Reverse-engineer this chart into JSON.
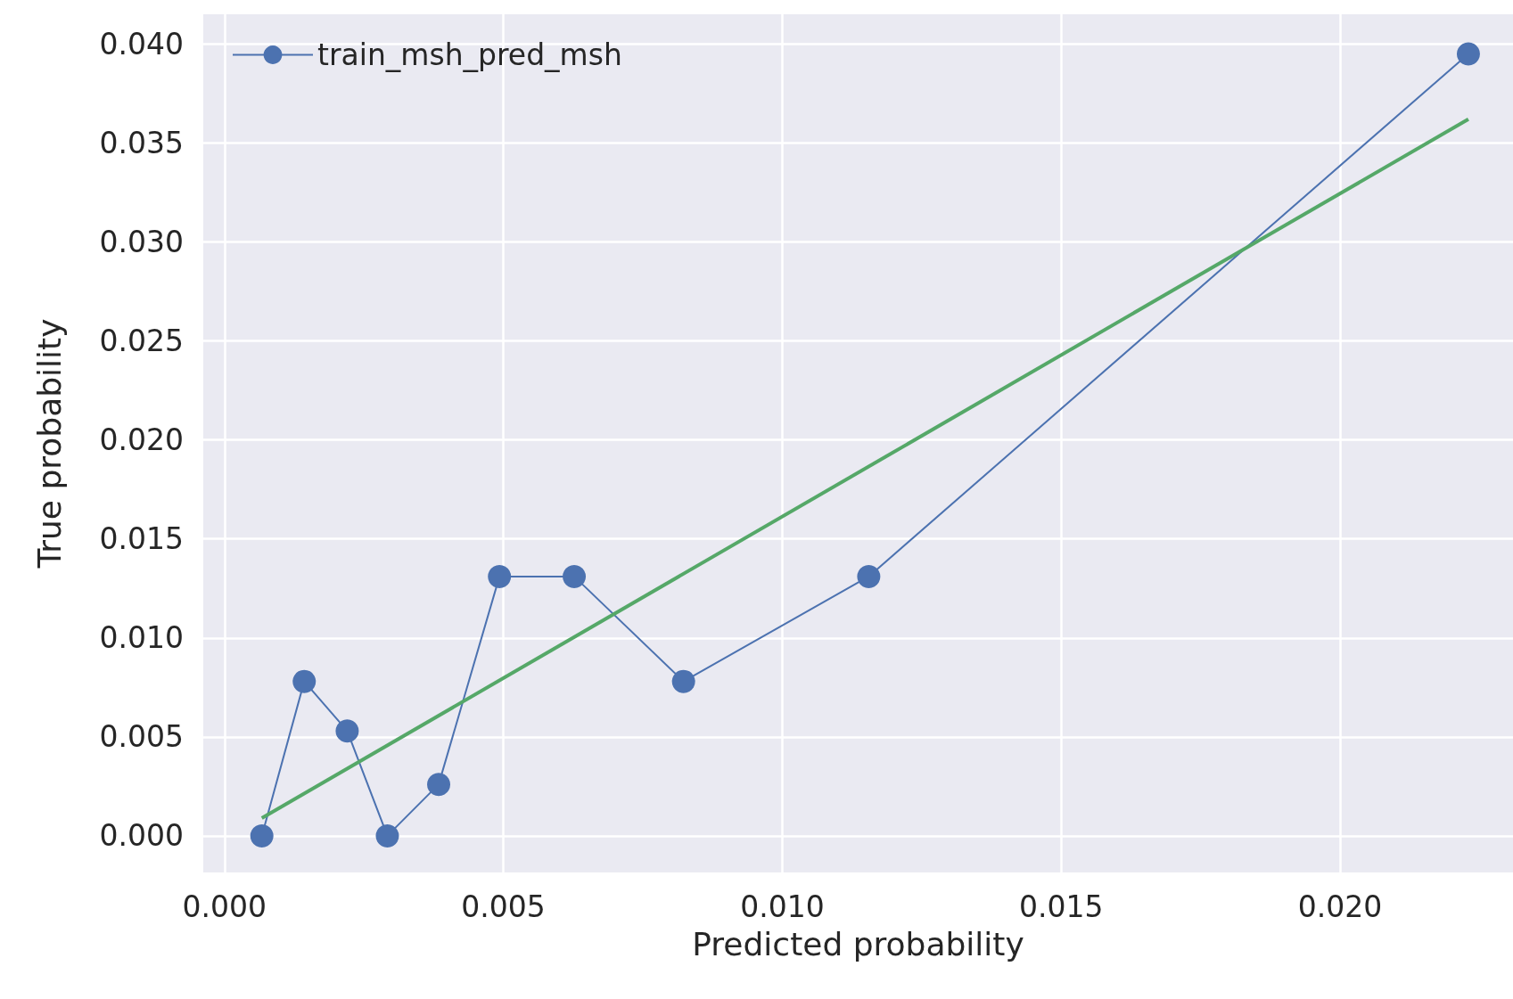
{
  "chart_data": {
    "type": "line",
    "xlabel": "Predicted probability",
    "ylabel": "True probability",
    "xlim": [
      -0.00038,
      0.0231
    ],
    "ylim": [
      -0.00185,
      0.0415
    ],
    "xticks": [
      {
        "value": 0,
        "label": "0.000"
      },
      {
        "value": 0.005,
        "label": "0.005"
      },
      {
        "value": 0.01,
        "label": "0.010"
      },
      {
        "value": 0.015,
        "label": "0.015"
      },
      {
        "value": 0.02,
        "label": "0.020"
      }
    ],
    "yticks": [
      {
        "value": 0,
        "label": "0.000"
      },
      {
        "value": 0.005,
        "label": "0.005"
      },
      {
        "value": 0.01,
        "label": "0.010"
      },
      {
        "value": 0.015,
        "label": "0.015"
      },
      {
        "value": 0.02,
        "label": "0.020"
      },
      {
        "value": 0.025,
        "label": "0.025"
      },
      {
        "value": 0.03,
        "label": "0.030"
      },
      {
        "value": 0.035,
        "label": "0.035"
      },
      {
        "value": 0.04,
        "label": "0.040"
      }
    ],
    "series": [
      {
        "name": "train_msh_pred_msh",
        "color": "#4c72b0",
        "marker": "circle",
        "x": [
          0.00067,
          0.00143,
          0.0022,
          0.00292,
          0.00384,
          0.00493,
          0.00627,
          0.00823,
          0.01155,
          0.0223
        ],
        "values": [
          0,
          0.0078,
          0.0053,
          0,
          0.0026,
          0.0131,
          0.0131,
          0.0078,
          0.0131,
          0.0395
        ]
      },
      {
        "type": "line",
        "color": "#55a868",
        "marker": "none",
        "x": [
          0.00067,
          0.0223
        ],
        "values": [
          0.0009,
          0.0362
        ]
      }
    ],
    "grid": true,
    "legend": "top left",
    "line_style": "solid"
  }
}
